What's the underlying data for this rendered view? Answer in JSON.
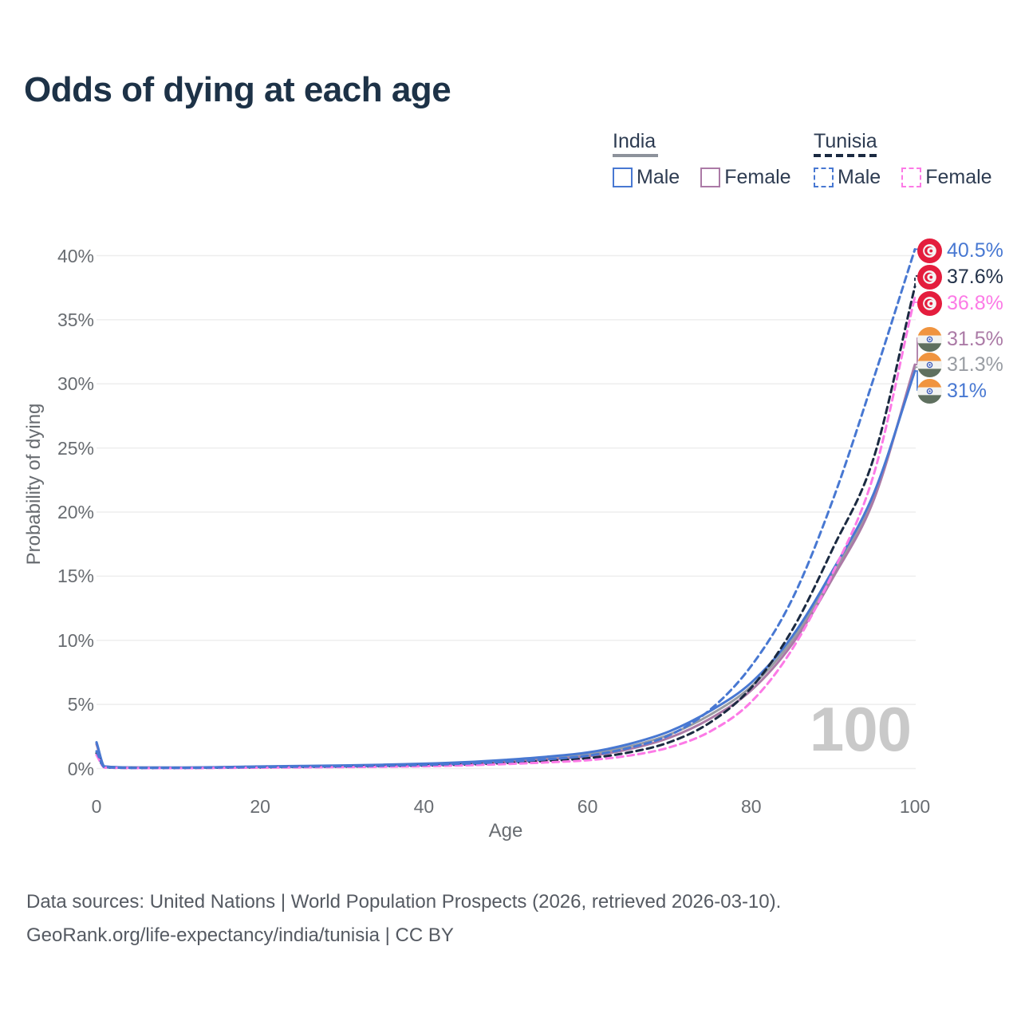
{
  "page": {
    "title": "Odds of dying at each age",
    "watermark_age": "100"
  },
  "legend": {
    "groups": [
      {
        "label": "India",
        "line_style": "solid",
        "underline_color": "#8d929b",
        "items": [
          {
            "label": "Male",
            "color": "#4878d2",
            "dashed": false
          },
          {
            "label": "Female",
            "color": "#ab7aa6",
            "dashed": false
          }
        ]
      },
      {
        "label": "Tunisia",
        "line_style": "dashed",
        "underline_color": "#1b2a41",
        "items": [
          {
            "label": "Male",
            "color": "#4878d2",
            "dashed": true
          },
          {
            "label": "Female",
            "color": "#fc7ae6",
            "dashed": true
          }
        ]
      }
    ]
  },
  "chart_data": {
    "type": "line",
    "title": "Odds of dying at each age",
    "xlabel": "Age",
    "ylabel": "Probability of dying",
    "x_ticks": [
      0,
      20,
      40,
      60,
      80,
      100
    ],
    "y_ticks": [
      "0%",
      "5%",
      "10%",
      "15%",
      "20%",
      "25%",
      "30%",
      "35%",
      "40%"
    ],
    "y_tick_values": [
      0,
      5,
      10,
      15,
      20,
      25,
      30,
      35,
      40
    ],
    "xlim": [
      0,
      100
    ],
    "ylim_pct": [
      0,
      40.5
    ],
    "grid": "horizontal",
    "legend_position": "top-right",
    "ages": [
      0,
      1,
      5,
      10,
      15,
      20,
      25,
      30,
      35,
      40,
      45,
      50,
      55,
      60,
      65,
      70,
      75,
      80,
      85,
      90,
      95,
      100
    ],
    "series": [
      {
        "name": "India both sexes",
        "country": "india",
        "sex": "both",
        "color": "#999da3",
        "dashed": false,
        "end_value_pct": 31.3,
        "values_pct": [
          1.98,
          0.155,
          0.075,
          0.07,
          0.1,
          0.14,
          0.17,
          0.2,
          0.26,
          0.33,
          0.43,
          0.59,
          0.81,
          1.1,
          1.7,
          2.65,
          4.2,
          6.4,
          10.0,
          15.2,
          21.2,
          31.3
        ]
      },
      {
        "name": "India female",
        "country": "india",
        "sex": "female",
        "color": "#ab7aa6",
        "dashed": false,
        "end_value_pct": 31.5,
        "values_pct": [
          1.9,
          0.15,
          0.07,
          0.06,
          0.08,
          0.11,
          0.14,
          0.17,
          0.21,
          0.27,
          0.36,
          0.5,
          0.7,
          0.95,
          1.5,
          2.4,
          3.9,
          6.1,
          9.7,
          14.9,
          21.0,
          31.5
        ]
      },
      {
        "name": "India male",
        "country": "india",
        "sex": "male",
        "color": "#4878d2",
        "dashed": false,
        "end_value_pct": 31.0,
        "values_pct": [
          2.05,
          0.16,
          0.08,
          0.08,
          0.11,
          0.16,
          0.2,
          0.24,
          0.3,
          0.38,
          0.5,
          0.68,
          0.92,
          1.25,
          1.9,
          2.9,
          4.5,
          6.7,
          10.3,
          15.5,
          21.5,
          31.0
        ]
      },
      {
        "name": "Tunisia both sexes",
        "country": "tunisia",
        "sex": "both",
        "color": "#1b2a41",
        "dashed": true,
        "end_value_pct": 37.6,
        "values_pct": [
          1.2,
          0.09,
          0.045,
          0.04,
          0.06,
          0.09,
          0.12,
          0.14,
          0.18,
          0.23,
          0.31,
          0.43,
          0.6,
          0.8,
          1.25,
          2.05,
          3.6,
          6.3,
          10.8,
          17.2,
          24.3,
          37.6
        ]
      },
      {
        "name": "Tunisia female",
        "country": "tunisia",
        "sex": "female",
        "color": "#fc7ae6",
        "dashed": true,
        "end_value_pct": 36.8,
        "values_pct": [
          1.05,
          0.08,
          0.04,
          0.03,
          0.05,
          0.07,
          0.09,
          0.11,
          0.14,
          0.18,
          0.25,
          0.35,
          0.48,
          0.65,
          1.0,
          1.65,
          2.9,
          5.2,
          9.3,
          15.3,
          23.0,
          36.8
        ]
      },
      {
        "name": "Tunisia male",
        "country": "tunisia",
        "sex": "male",
        "color": "#4878d2",
        "dashed": true,
        "end_value_pct": 40.5,
        "values_pct": [
          1.35,
          0.1,
          0.05,
          0.05,
          0.08,
          0.12,
          0.15,
          0.18,
          0.22,
          0.28,
          0.38,
          0.52,
          0.72,
          1.0,
          1.6,
          2.6,
          4.6,
          8.0,
          13.2,
          21.0,
          30.5,
          40.5
        ]
      }
    ]
  },
  "end_labels": [
    {
      "value": "40.5%",
      "flag": "tunisia",
      "series": "Tunisia male",
      "color": "#4878d2"
    },
    {
      "value": "37.6%",
      "flag": "tunisia",
      "series": "Tunisia both sexes",
      "color": "#23324a"
    },
    {
      "value": "36.8%",
      "flag": "tunisia",
      "series": "Tunisia female",
      "color": "#fc7ae6"
    },
    {
      "value": "31.5%",
      "flag": "india",
      "series": "India female",
      "color": "#ab7aa6"
    },
    {
      "value": "31.3%",
      "flag": "india",
      "series": "India both sexes",
      "color": "#999da3"
    },
    {
      "value": "31%",
      "flag": "india",
      "series": "India male",
      "color": "#4878d2"
    }
  ],
  "footer": {
    "line1": "Data sources: United Nations | World Population Prospects (2026, retrieved 2026-03-10).",
    "line2": "GeoRank.org/life-expectancy/india/tunisia | CC BY"
  },
  "colors": {
    "title": "#1d3247",
    "male_blue": "#4878d2",
    "india_female_purple": "#ab7aa6",
    "india_both_gray": "#999da3",
    "tunisia_both_navy": "#1b2a41",
    "tunisia_female_pink": "#fc7ae6",
    "gridline": "#eeeeee",
    "tick_text": "#686c71",
    "watermark": "#c9c9c9"
  }
}
